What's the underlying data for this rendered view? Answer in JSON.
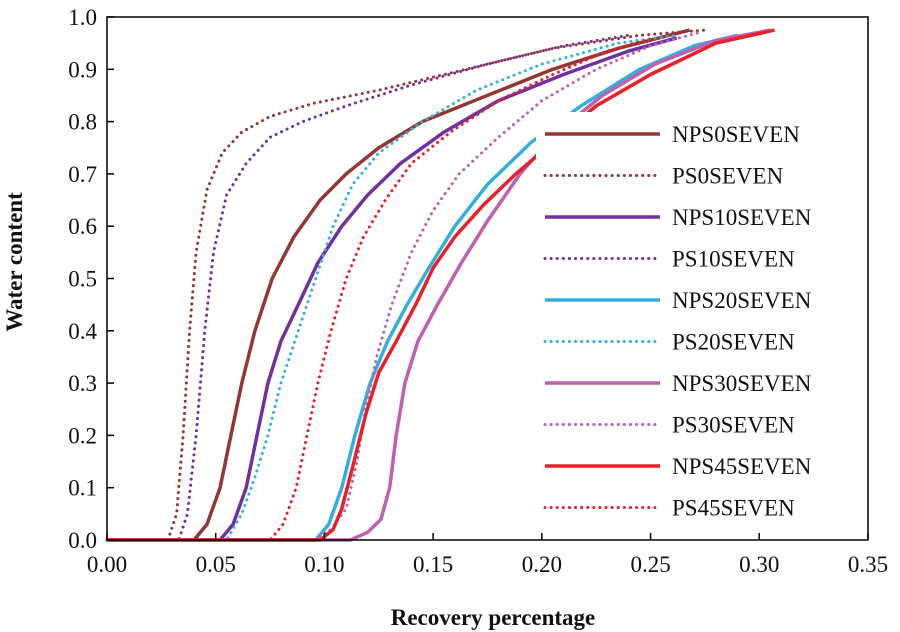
{
  "chart_data": {
    "type": "line",
    "title": "",
    "xlabel": "Recovery percentage",
    "ylabel": "Water content",
    "xlim": [
      0,
      0.35
    ],
    "ylim": [
      0,
      1.0
    ],
    "xticks": [
      "0.00",
      "0.05",
      "0.10",
      "0.15",
      "0.20",
      "0.25",
      "0.30",
      "0.35"
    ],
    "yticks": [
      "0.0",
      "0.1",
      "0.2",
      "0.3",
      "0.4",
      "0.5",
      "0.6",
      "0.7",
      "0.8",
      "0.9",
      "1.0"
    ],
    "grid": false,
    "legend_position": "right",
    "series": [
      {
        "name": "NPS0SEVEN",
        "color": "#943634",
        "style": "solid",
        "points": [
          [
            0.0,
            0.0
          ],
          [
            0.04,
            0.0
          ],
          [
            0.046,
            0.03
          ],
          [
            0.052,
            0.1
          ],
          [
            0.057,
            0.2
          ],
          [
            0.062,
            0.3
          ],
          [
            0.068,
            0.4
          ],
          [
            0.076,
            0.5
          ],
          [
            0.086,
            0.58
          ],
          [
            0.098,
            0.65
          ],
          [
            0.11,
            0.7
          ],
          [
            0.125,
            0.75
          ],
          [
            0.145,
            0.8
          ],
          [
            0.175,
            0.85
          ],
          [
            0.205,
            0.9
          ],
          [
            0.235,
            0.94
          ],
          [
            0.268,
            0.975
          ]
        ]
      },
      {
        "name": "PS0SEVEN",
        "color": "#943634",
        "style": "dotted",
        "points": [
          [
            0.0,
            0.0
          ],
          [
            0.028,
            0.0
          ],
          [
            0.032,
            0.05
          ],
          [
            0.035,
            0.2
          ],
          [
            0.038,
            0.4
          ],
          [
            0.041,
            0.55
          ],
          [
            0.046,
            0.67
          ],
          [
            0.053,
            0.74
          ],
          [
            0.062,
            0.78
          ],
          [
            0.075,
            0.81
          ],
          [
            0.095,
            0.835
          ],
          [
            0.125,
            0.86
          ],
          [
            0.165,
            0.9
          ],
          [
            0.205,
            0.94
          ],
          [
            0.245,
            0.965
          ],
          [
            0.275,
            0.975
          ]
        ]
      },
      {
        "name": "NPS10SEVEN",
        "color": "#7030a0",
        "style": "solid",
        "points": [
          [
            0.0,
            0.0
          ],
          [
            0.052,
            0.0
          ],
          [
            0.058,
            0.03
          ],
          [
            0.064,
            0.1
          ],
          [
            0.069,
            0.2
          ],
          [
            0.074,
            0.3
          ],
          [
            0.08,
            0.38
          ],
          [
            0.088,
            0.45
          ],
          [
            0.097,
            0.53
          ],
          [
            0.108,
            0.6
          ],
          [
            0.12,
            0.66
          ],
          [
            0.135,
            0.72
          ],
          [
            0.155,
            0.78
          ],
          [
            0.18,
            0.84
          ],
          [
            0.21,
            0.89
          ],
          [
            0.24,
            0.935
          ],
          [
            0.262,
            0.96
          ]
        ]
      },
      {
        "name": "PS10SEVEN",
        "color": "#7030a0",
        "style": "dotted",
        "points": [
          [
            0.0,
            0.0
          ],
          [
            0.033,
            0.0
          ],
          [
            0.037,
            0.05
          ],
          [
            0.041,
            0.2
          ],
          [
            0.045,
            0.4
          ],
          [
            0.049,
            0.55
          ],
          [
            0.055,
            0.66
          ],
          [
            0.064,
            0.72
          ],
          [
            0.075,
            0.77
          ],
          [
            0.09,
            0.8
          ],
          [
            0.11,
            0.83
          ],
          [
            0.14,
            0.87
          ],
          [
            0.175,
            0.91
          ],
          [
            0.21,
            0.945
          ],
          [
            0.24,
            0.965
          ]
        ]
      },
      {
        "name": "NPS20SEVEN",
        "color": "#31b0e0",
        "style": "solid",
        "points": [
          [
            0.0,
            0.0
          ],
          [
            0.096,
            0.0
          ],
          [
            0.102,
            0.03
          ],
          [
            0.108,
            0.1
          ],
          [
            0.114,
            0.2
          ],
          [
            0.121,
            0.3
          ],
          [
            0.129,
            0.38
          ],
          [
            0.138,
            0.45
          ],
          [
            0.148,
            0.52
          ],
          [
            0.16,
            0.6
          ],
          [
            0.175,
            0.68
          ],
          [
            0.195,
            0.76
          ],
          [
            0.218,
            0.83
          ],
          [
            0.245,
            0.9
          ],
          [
            0.27,
            0.945
          ],
          [
            0.29,
            0.965
          ]
        ]
      },
      {
        "name": "PS20SEVEN",
        "color": "#31b0e0",
        "style": "dotted",
        "points": [
          [
            0.0,
            0.0
          ],
          [
            0.055,
            0.0
          ],
          [
            0.062,
            0.05
          ],
          [
            0.068,
            0.12
          ],
          [
            0.074,
            0.2
          ],
          [
            0.08,
            0.3
          ],
          [
            0.088,
            0.4
          ],
          [
            0.096,
            0.5
          ],
          [
            0.104,
            0.6
          ],
          [
            0.113,
            0.68
          ],
          [
            0.125,
            0.74
          ],
          [
            0.145,
            0.8
          ],
          [
            0.17,
            0.86
          ],
          [
            0.2,
            0.91
          ],
          [
            0.235,
            0.95
          ],
          [
            0.262,
            0.965
          ]
        ]
      },
      {
        "name": "NPS30SEVEN",
        "color": "#c060b0",
        "style": "solid",
        "points": [
          [
            0.0,
            0.0
          ],
          [
            0.112,
            0.0
          ],
          [
            0.12,
            0.015
          ],
          [
            0.126,
            0.04
          ],
          [
            0.13,
            0.1
          ],
          [
            0.133,
            0.2
          ],
          [
            0.137,
            0.3
          ],
          [
            0.143,
            0.38
          ],
          [
            0.152,
            0.45
          ],
          [
            0.163,
            0.53
          ],
          [
            0.175,
            0.61
          ],
          [
            0.19,
            0.7
          ],
          [
            0.207,
            0.78
          ],
          [
            0.228,
            0.85
          ],
          [
            0.252,
            0.91
          ],
          [
            0.28,
            0.955
          ],
          [
            0.305,
            0.975
          ]
        ]
      },
      {
        "name": "PS30SEVEN",
        "color": "#c060b0",
        "style": "dotted",
        "points": [
          [
            0.0,
            0.0
          ],
          [
            0.095,
            0.0
          ],
          [
            0.103,
            0.02
          ],
          [
            0.11,
            0.06
          ],
          [
            0.115,
            0.15
          ],
          [
            0.119,
            0.25
          ],
          [
            0.124,
            0.35
          ],
          [
            0.131,
            0.45
          ],
          [
            0.14,
            0.55
          ],
          [
            0.15,
            0.63
          ],
          [
            0.162,
            0.7
          ],
          [
            0.18,
            0.77
          ],
          [
            0.2,
            0.84
          ],
          [
            0.225,
            0.9
          ],
          [
            0.25,
            0.945
          ],
          [
            0.272,
            0.97
          ]
        ]
      },
      {
        "name": "NPS45SEVEN",
        "color": "#e8202a",
        "style": "solid",
        "points": [
          [
            0.0,
            0.0
          ],
          [
            0.098,
            0.0
          ],
          [
            0.104,
            0.02
          ],
          [
            0.108,
            0.06
          ],
          [
            0.113,
            0.14
          ],
          [
            0.119,
            0.24
          ],
          [
            0.125,
            0.32
          ],
          [
            0.133,
            0.38
          ],
          [
            0.142,
            0.45
          ],
          [
            0.15,
            0.52
          ],
          [
            0.16,
            0.58
          ],
          [
            0.173,
            0.64
          ],
          [
            0.188,
            0.7
          ],
          [
            0.205,
            0.76
          ],
          [
            0.225,
            0.83
          ],
          [
            0.25,
            0.89
          ],
          [
            0.28,
            0.95
          ],
          [
            0.307,
            0.975
          ]
        ]
      },
      {
        "name": "PS45SEVEN",
        "color": "#e8202a",
        "style": "dotted",
        "points": [
          [
            0.0,
            0.0
          ],
          [
            0.075,
            0.0
          ],
          [
            0.081,
            0.03
          ],
          [
            0.087,
            0.1
          ],
          [
            0.092,
            0.2
          ],
          [
            0.097,
            0.3
          ],
          [
            0.103,
            0.4
          ],
          [
            0.11,
            0.5
          ],
          [
            0.118,
            0.58
          ],
          [
            0.128,
            0.65
          ],
          [
            0.14,
            0.72
          ],
          [
            0.158,
            0.78
          ],
          [
            0.18,
            0.84
          ],
          [
            0.205,
            0.89
          ],
          [
            0.23,
            0.935
          ],
          [
            0.252,
            0.96
          ]
        ]
      }
    ]
  }
}
